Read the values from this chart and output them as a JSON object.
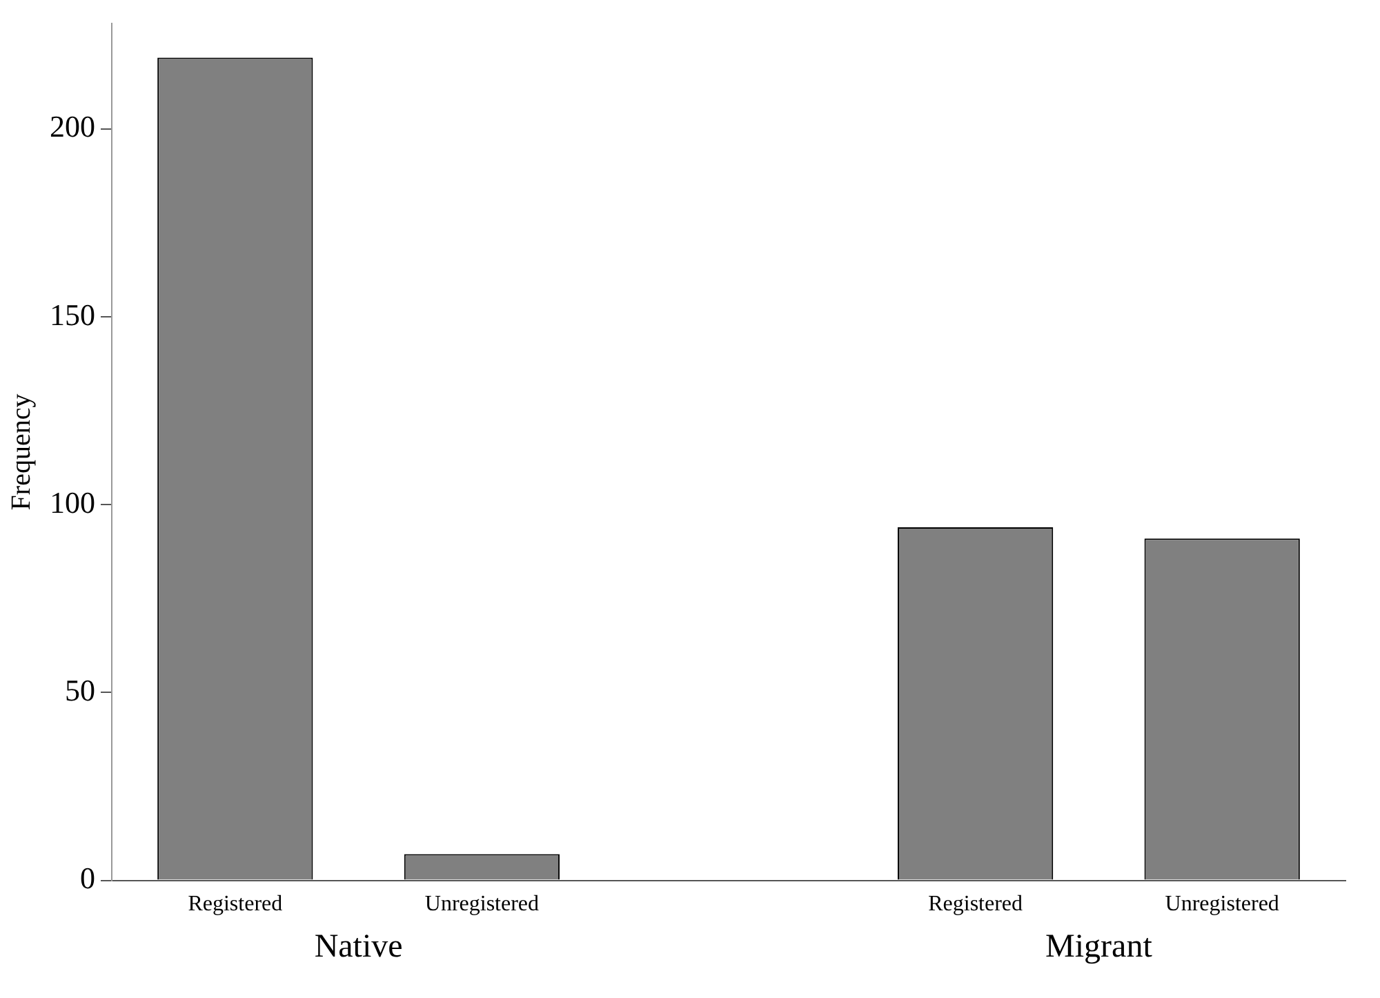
{
  "chart_data": {
    "type": "bar",
    "ylabel": "Frequency",
    "categories": [
      "Registered",
      "Unregistered",
      null,
      "Registered",
      "Unregistered"
    ],
    "values": [
      219,
      7,
      null,
      94,
      91
    ],
    "color": "#808080",
    "ylim": [
      0,
      228
    ],
    "yticks": [
      0,
      50,
      100,
      150,
      200
    ],
    "grid": false,
    "legend": false,
    "annotations": [
      "Native",
      "Migrant"
    ]
  }
}
